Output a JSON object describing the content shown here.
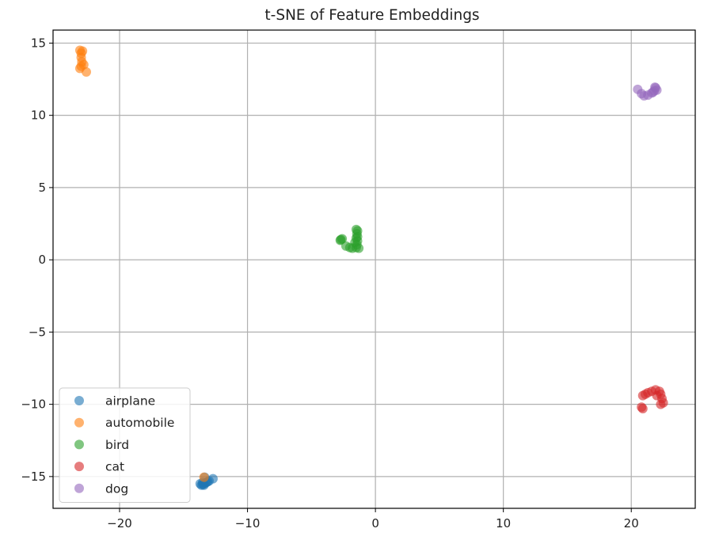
{
  "chart_data": {
    "type": "scatter",
    "title": "t-SNE of Feature Embeddings",
    "xlabel": "",
    "ylabel": "",
    "xlim": [
      -25.2,
      25.0
    ],
    "ylim": [
      -17.2,
      15.9
    ],
    "xticks": [
      -20,
      -10,
      0,
      10,
      20
    ],
    "yticks": [
      15,
      10,
      5,
      0,
      -5,
      -10,
      -15
    ],
    "xtick_labels": [
      "−20",
      "−10",
      "0",
      "10",
      "20"
    ],
    "ytick_labels": [
      "15",
      "10",
      "5",
      "0",
      "−5",
      "−10",
      "−15"
    ],
    "grid": true,
    "legend_position": "lower-left",
    "series": [
      {
        "name": "airplane",
        "color": "#1f77b4",
        "points": [
          [
            -13.6,
            -15.6
          ],
          [
            -13.4,
            -15.5
          ],
          [
            -13.2,
            -15.4
          ],
          [
            -13.5,
            -15.55
          ],
          [
            -13.3,
            -15.45
          ],
          [
            -13.1,
            -15.35
          ],
          [
            -13.0,
            -15.3
          ],
          [
            -13.4,
            -15.6
          ],
          [
            -13.7,
            -15.5
          ],
          [
            -13.5,
            -15.4
          ],
          [
            -12.7,
            -15.15
          ],
          [
            -13.35,
            -15.05
          ]
        ]
      },
      {
        "name": "automobile",
        "color": "#ff7f0e",
        "points": [
          [
            -23.1,
            14.5
          ],
          [
            -23.0,
            14.3
          ],
          [
            -22.9,
            14.45
          ],
          [
            -23.0,
            14.0
          ],
          [
            -22.95,
            13.7
          ],
          [
            -23.0,
            13.4
          ],
          [
            -23.1,
            13.25
          ],
          [
            -22.8,
            13.5
          ],
          [
            -22.6,
            13.0
          ],
          [
            -13.4,
            -15.05
          ]
        ]
      },
      {
        "name": "bird",
        "color": "#2ca02c",
        "points": [
          [
            -1.5,
            2.1
          ],
          [
            -1.4,
            2.0
          ],
          [
            -1.45,
            1.8
          ],
          [
            -1.4,
            1.6
          ],
          [
            -1.5,
            1.5
          ],
          [
            -1.4,
            1.3
          ],
          [
            -1.6,
            1.2
          ],
          [
            -1.45,
            1.05
          ],
          [
            -1.5,
            0.85
          ],
          [
            -1.3,
            0.8
          ],
          [
            -1.8,
            0.8
          ],
          [
            -2.0,
            0.85
          ],
          [
            -2.3,
            0.95
          ],
          [
            -2.7,
            1.4
          ],
          [
            -2.6,
            1.45
          ],
          [
            -2.75,
            1.35
          ]
        ]
      },
      {
        "name": "cat",
        "color": "#d62728",
        "points": [
          [
            20.9,
            -9.4
          ],
          [
            21.1,
            -9.3
          ],
          [
            21.3,
            -9.2
          ],
          [
            21.6,
            -9.1
          ],
          [
            21.9,
            -9.0
          ],
          [
            22.2,
            -9.1
          ],
          [
            22.3,
            -9.3
          ],
          [
            22.4,
            -9.6
          ],
          [
            22.5,
            -9.9
          ],
          [
            22.3,
            -10.0
          ],
          [
            22.0,
            -9.4
          ],
          [
            20.8,
            -10.2
          ],
          [
            20.9,
            -10.3
          ]
        ]
      },
      {
        "name": "dog",
        "color": "#9467bd",
        "points": [
          [
            20.5,
            11.8
          ],
          [
            20.8,
            11.5
          ],
          [
            21.0,
            11.35
          ],
          [
            21.3,
            11.4
          ],
          [
            21.6,
            11.55
          ],
          [
            21.8,
            11.7
          ],
          [
            21.9,
            11.9
          ],
          [
            22.0,
            11.75
          ],
          [
            21.85,
            11.95
          ],
          [
            21.7,
            11.6
          ]
        ]
      }
    ]
  }
}
